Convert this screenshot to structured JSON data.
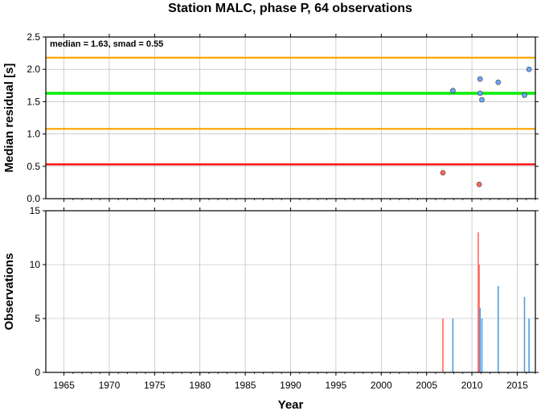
{
  "chart_data": [
    {
      "type": "scatter",
      "title": "Station MALC, phase P, 64 observations",
      "ylabel": "Median residual [s]",
      "xlim": [
        1963,
        2017
      ],
      "ylim": [
        0,
        2.5
      ],
      "yticks": [
        "0.0",
        "0.5",
        "1.0",
        "1.5",
        "2.0",
        "2.5"
      ],
      "grid": true,
      "annotation": "median = 1.63, smad = 0.55",
      "reference_lines": [
        {
          "y": 2.18,
          "color": "#ffa500"
        },
        {
          "y": 1.63,
          "color": "#00ee00"
        },
        {
          "y": 1.08,
          "color": "#ffa500"
        },
        {
          "y": 0.53,
          "color": "#ff0000"
        }
      ],
      "points": [
        {
          "x": 2006.8,
          "y": 0.4,
          "color": "#ff6b5e"
        },
        {
          "x": 2010.8,
          "y": 0.22,
          "color": "#ff6b5e"
        },
        {
          "x": 2007.9,
          "y": 1.67,
          "color": "#6aa8ff"
        },
        {
          "x": 2010.9,
          "y": 1.85,
          "color": "#6aa8ff"
        },
        {
          "x": 2010.9,
          "y": 1.63,
          "color": "#6aa8ff"
        },
        {
          "x": 2011.1,
          "y": 1.53,
          "color": "#6aa8ff"
        },
        {
          "x": 2012.9,
          "y": 1.8,
          "color": "#6aa8ff"
        },
        {
          "x": 2015.8,
          "y": 1.6,
          "color": "#6aa8ff"
        },
        {
          "x": 2016.3,
          "y": 2.0,
          "color": "#6aa8ff"
        }
      ]
    },
    {
      "type": "bar",
      "xlabel": "Year",
      "ylabel": "Observations",
      "xlim": [
        1963,
        2017
      ],
      "ylim": [
        0,
        15
      ],
      "xticks": [
        "1965",
        "1970",
        "1975",
        "1980",
        "1985",
        "1990",
        "1995",
        "2000",
        "2005",
        "2010",
        "2015"
      ],
      "yticks": [
        "0",
        "5",
        "10",
        "15"
      ],
      "grid": true,
      "bars": [
        {
          "x": 2006.8,
          "value": 5,
          "color": "#ff6b5e"
        },
        {
          "x": 2010.7,
          "value": 13,
          "color": "#ff6b5e"
        },
        {
          "x": 2010.8,
          "value": 10,
          "color": "#ff6b5e"
        },
        {
          "x": 2007.9,
          "value": 5,
          "color": "#4a9ee8"
        },
        {
          "x": 2010.9,
          "value": 6,
          "color": "#4a9ee8"
        },
        {
          "x": 2011.1,
          "value": 5,
          "color": "#4a9ee8"
        },
        {
          "x": 2012.9,
          "value": 8,
          "color": "#4a9ee8"
        },
        {
          "x": 2015.8,
          "value": 7,
          "color": "#4a9ee8"
        },
        {
          "x": 2016.3,
          "value": 5,
          "color": "#4a9ee8"
        }
      ]
    }
  ]
}
